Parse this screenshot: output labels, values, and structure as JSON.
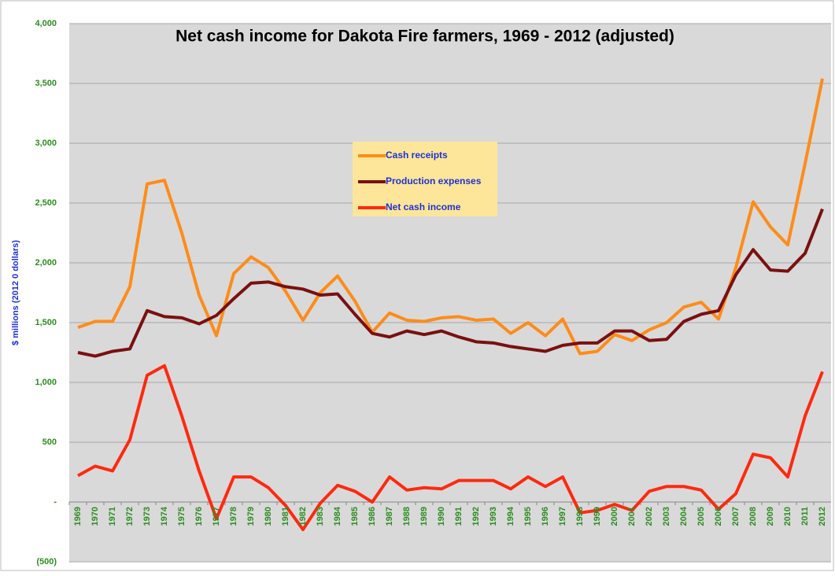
{
  "chart_data": {
    "type": "line",
    "title": "Net cash income for Dakota Fire farmers, 1969 - 2012 (adjusted)",
    "y_label": "$ millions (2012 0 dollars)",
    "categories": [
      "1969",
      "1970",
      "1971",
      "1972",
      "1973",
      "1974",
      "1975",
      "1976",
      "1977",
      "1978",
      "1979",
      "1980",
      "1981",
      "1982",
      "1983",
      "1984",
      "1985",
      "1986",
      "1987",
      "1988",
      "1989",
      "1990",
      "1991",
      "1992",
      "1993",
      "1994",
      "1995",
      "1996",
      "1997",
      "1998",
      "1999",
      "2000",
      "2001",
      "2002",
      "2003",
      "2004",
      "2005",
      "2006",
      "2007",
      "2008",
      "2009",
      "2010",
      "2011",
      "2012"
    ],
    "series": [
      {
        "name": "Cash receipts",
        "color": "#ff8c1a",
        "values": [
          1460,
          1510,
          1510,
          1800,
          2660,
          2690,
          2250,
          1730,
          1390,
          1910,
          2050,
          1960,
          1760,
          1520,
          1750,
          1890,
          1680,
          1420,
          1580,
          1520,
          1510,
          1540,
          1550,
          1520,
          1530,
          1410,
          1500,
          1390,
          1530,
          1240,
          1260,
          1400,
          1350,
          1440,
          1500,
          1630,
          1670,
          1530,
          1960,
          2510,
          2300,
          2150,
          2830,
          3540
        ]
      },
      {
        "name": "Production expenses",
        "color": "#7a1010",
        "values": [
          1250,
          1220,
          1260,
          1280,
          1600,
          1550,
          1540,
          1490,
          1560,
          1700,
          1830,
          1840,
          1800,
          1780,
          1730,
          1740,
          1570,
          1410,
          1380,
          1430,
          1400,
          1430,
          1380,
          1340,
          1330,
          1300,
          1280,
          1260,
          1310,
          1330,
          1330,
          1430,
          1430,
          1350,
          1360,
          1510,
          1570,
          1600,
          1900,
          2110,
          1940,
          1930,
          2080,
          2450
        ]
      },
      {
        "name": "Net cash income",
        "color": "#ff2a10",
        "values": [
          220,
          300,
          260,
          520,
          1060,
          1140,
          720,
          260,
          -140,
          210,
          210,
          120,
          -30,
          -230,
          -10,
          140,
          90,
          0,
          210,
          100,
          120,
          110,
          180,
          180,
          180,
          110,
          210,
          130,
          210,
          -90,
          -70,
          -20,
          -70,
          90,
          130,
          130,
          100,
          -60,
          70,
          400,
          370,
          210,
          720,
          1090
        ]
      }
    ],
    "ylim": [
      -500,
      4000
    ],
    "yticks": [
      {
        "value": -500,
        "label": "(500)"
      },
      {
        "value": 0,
        "label": "-"
      },
      500,
      {
        "value": 1000,
        "label": "1,000"
      },
      {
        "value": 1500,
        "label": "1,500"
      },
      {
        "value": 2000,
        "label": "2,000"
      },
      {
        "value": 2500,
        "label": "2,500"
      },
      {
        "value": 3000,
        "label": "3,000"
      },
      {
        "value": 3500,
        "label": "3,500"
      },
      {
        "value": 4000,
        "label": "4,000"
      }
    ],
    "grid": true
  }
}
